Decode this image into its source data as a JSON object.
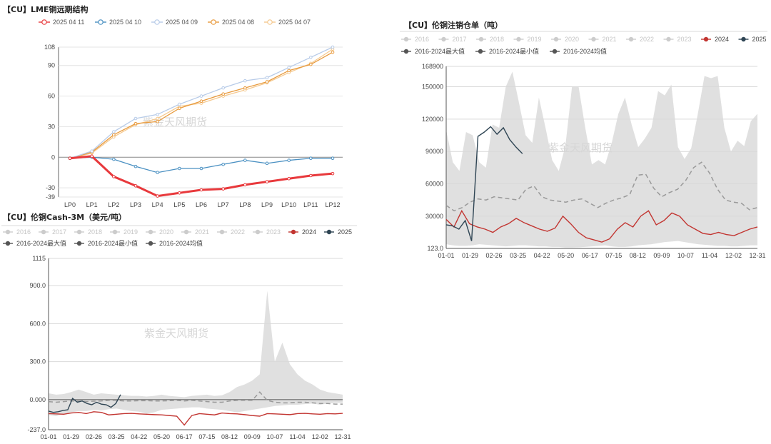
{
  "chart_data": [
    {
      "type": "line",
      "title": "【CU】LME铜远期结构",
      "watermark": "紫金天风期货",
      "categories": [
        "LP0",
        "LP1",
        "LP2",
        "LP3",
        "LP4",
        "LP5",
        "LP6",
        "LP7",
        "LP8",
        "LP9",
        "LP10",
        "LP11",
        "LP12"
      ],
      "y_ticks": [
        "108",
        "90",
        "60",
        "30",
        "0",
        "-30",
        "-39"
      ],
      "ylim": [
        -39,
        108
      ],
      "legend_position": "top-left",
      "series": [
        {
          "name": "2025 04 11",
          "color": "#e8393c",
          "values": [
            -1,
            1,
            -19,
            -28,
            -38,
            -35,
            -32,
            -31,
            -27,
            -24,
            -21,
            -18,
            -16
          ]
        },
        {
          "name": "2025 04 10",
          "color": "#4a90c2",
          "values": [
            -1,
            0,
            -2,
            -9,
            -15,
            -11,
            -11,
            -7,
            -3,
            -6,
            -3,
            -1,
            -1
          ]
        },
        {
          "name": "2025 04 09",
          "color": "#b7cbe8",
          "values": [
            -1,
            6,
            25,
            38,
            42,
            52,
            60,
            68,
            75,
            78,
            88,
            98,
            108
          ]
        },
        {
          "name": "2025 04 08",
          "color": "#e89a3d",
          "values": [
            -1,
            5,
            22,
            33,
            35,
            48,
            55,
            62,
            68,
            74,
            85,
            91,
            103
          ]
        },
        {
          "name": "2025 04 07",
          "color": "#f5c98f",
          "values": [
            -1,
            4,
            20,
            32,
            38,
            50,
            53,
            60,
            66,
            73,
            83,
            92,
            106
          ]
        }
      ]
    },
    {
      "type": "area",
      "title": "【CU】伦铜注销仓单（吨）",
      "watermark": "紫金天风期货",
      "x_ticks": [
        "01-01",
        "01-29",
        "02-26",
        "03-25",
        "04-22",
        "05-20",
        "06-17",
        "07-15",
        "08-12",
        "09-09",
        "10-07",
        "11-04",
        "12-02",
        "12-31"
      ],
      "y_ticks": [
        "168900",
        "150000",
        "120000",
        "90000",
        "60000",
        "30000",
        "123.0"
      ],
      "ylim": [
        123,
        168900
      ],
      "legend_position": "top",
      "legend": [
        {
          "name": "2016",
          "color": "#cccccc"
        },
        {
          "name": "2017",
          "color": "#cccccc"
        },
        {
          "name": "2018",
          "color": "#cccccc"
        },
        {
          "name": "2019",
          "color": "#cccccc"
        },
        {
          "name": "2020",
          "color": "#cccccc"
        },
        {
          "name": "2021",
          "color": "#cccccc"
        },
        {
          "name": "2022",
          "color": "#cccccc"
        },
        {
          "name": "2023",
          "color": "#cccccc"
        },
        {
          "name": "2024",
          "color": "#c23531"
        },
        {
          "name": "2025",
          "color": "#2f4554"
        },
        {
          "name": "2016-2024最大值",
          "color": "#555555"
        },
        {
          "name": "2016-2024最小值",
          "color": "#555555"
        },
        {
          "name": "2016-2024均值",
          "color": "#555555"
        }
      ],
      "band_max": [
        110000,
        80000,
        72000,
        108000,
        105000,
        80000,
        75000,
        115000,
        112000,
        150000,
        164000,
        135000,
        105000,
        98000,
        140000,
        112000,
        82000,
        72000,
        95000,
        150000,
        150000,
        112000,
        78000,
        82000,
        78000,
        98000,
        125000,
        140000,
        115000,
        94000,
        102000,
        112000,
        146000,
        142000,
        152000,
        94000,
        83000,
        93000,
        125000,
        160000,
        158000,
        160000,
        112000,
        90000,
        100000,
        95000,
        118000,
        125000
      ],
      "band_min": [
        4000,
        3000,
        2500,
        2500,
        3000,
        4000,
        3500,
        3000,
        2500,
        2000,
        2500,
        3000,
        3000,
        2500,
        2000,
        2000,
        1500,
        1500,
        1000,
        1000,
        1200,
        1500,
        2000,
        2500,
        3000,
        2000,
        1500,
        1500,
        2000,
        3000,
        3500,
        4000,
        5000,
        6000,
        6500,
        7000,
        6000,
        5000,
        4000,
        3500,
        3000,
        2500,
        2500,
        2000,
        2000,
        2500,
        3000,
        3000
      ],
      "average": [
        40000,
        35000,
        38000,
        43000,
        46000,
        45000,
        48000,
        47000,
        46000,
        45000,
        55000,
        58000,
        48000,
        45000,
        44000,
        43000,
        45000,
        46000,
        42000,
        38000,
        42000,
        45000,
        47000,
        50000,
        68000,
        69000,
        56000,
        48000,
        52000,
        55000,
        63000,
        75000,
        80000,
        70000,
        55000,
        45000,
        43000,
        42000,
        36000,
        38000
      ],
      "series": [
        {
          "name": "2024",
          "color": "#c23531",
          "values": [
            27000,
            20000,
            35000,
            23000,
            20000,
            18000,
            15000,
            20000,
            23000,
            28000,
            24000,
            21000,
            18000,
            16000,
            19000,
            30000,
            23000,
            15000,
            10000,
            8000,
            6000,
            9000,
            18000,
            24000,
            20000,
            30000,
            35000,
            22000,
            26000,
            33000,
            30000,
            22000,
            18000,
            14000,
            13000,
            15000,
            13000,
            12000,
            15000,
            18000,
            20000
          ]
        },
        {
          "name": "2025",
          "color": "#2f4554",
          "values": [
            22000,
            21000,
            18000,
            26000,
            7000,
            104000,
            108000,
            113000,
            106000,
            112000,
            101000,
            94000,
            88000
          ]
        }
      ]
    },
    {
      "type": "area",
      "title": "【CU】伦铜Cash-3M（美元/吨）",
      "watermark": "紫金天风期货",
      "x_ticks": [
        "01-01",
        "01-29",
        "02-26",
        "03-25",
        "04-22",
        "05-20",
        "06-17",
        "07-15",
        "08-12",
        "09-09",
        "10-07",
        "11-04",
        "12-02",
        "12-31"
      ],
      "y_ticks": [
        "1115",
        "900.0",
        "600.0",
        "300.0",
        "0.000",
        "-237.0"
      ],
      "ylim": [
        -237,
        1115
      ],
      "legend_position": "top",
      "legend": [
        {
          "name": "2016",
          "color": "#cccccc"
        },
        {
          "name": "2017",
          "color": "#cccccc"
        },
        {
          "name": "2018",
          "color": "#cccccc"
        },
        {
          "name": "2019",
          "color": "#cccccc"
        },
        {
          "name": "2020",
          "color": "#cccccc"
        },
        {
          "name": "2021",
          "color": "#cccccc"
        },
        {
          "name": "2022",
          "color": "#cccccc"
        },
        {
          "name": "2023",
          "color": "#cccccc"
        },
        {
          "name": "2024",
          "color": "#c23531"
        },
        {
          "name": "2025",
          "color": "#2f4554"
        },
        {
          "name": "2016-2024最大值",
          "color": "#555555"
        },
        {
          "name": "2016-2024最小值",
          "color": "#555555"
        },
        {
          "name": "2016-2024均值",
          "color": "#555555"
        }
      ],
      "band_max": [
        50,
        40,
        45,
        60,
        80,
        60,
        40,
        50,
        45,
        40,
        35,
        30,
        30,
        25,
        30,
        40,
        30,
        25,
        20,
        30,
        35,
        40,
        30,
        35,
        60,
        100,
        120,
        150,
        200,
        860,
        300,
        450,
        280,
        200,
        150,
        120,
        80,
        60,
        50,
        40
      ],
      "band_min": [
        -120,
        -130,
        -110,
        -100,
        -90,
        -90,
        -80,
        -85,
        -75,
        -70,
        -80,
        -90,
        -95,
        -110,
        -100,
        -80,
        -75,
        -70,
        -65,
        -60,
        -60,
        -70,
        -75,
        -80,
        -90,
        -100,
        -90,
        -80,
        -70,
        -60,
        -50,
        -45,
        -40,
        -40,
        -35,
        -30,
        -40,
        -30,
        -25,
        -25
      ],
      "average": [
        -15,
        -20,
        -15,
        -10,
        -10,
        -15,
        -12,
        -10,
        -5,
        -5,
        -10,
        -10,
        -8,
        -8,
        -10,
        -10,
        -8,
        -5,
        -10,
        -5,
        -10,
        -15,
        -20,
        -20,
        -10,
        -5,
        -5,
        -5,
        60,
        -5,
        -20,
        -25,
        -25,
        -20,
        -20,
        -25,
        -30,
        -30,
        -35,
        -35
      ],
      "series": [
        {
          "name": "2024",
          "color": "#c23531",
          "values": [
            -110,
            -112,
            -115,
            -105,
            -100,
            -110,
            -95,
            -100,
            -120,
            -115,
            -110,
            -108,
            -112,
            -115,
            -118,
            -120,
            -125,
            -130,
            -200,
            -125,
            -110,
            -115,
            -120,
            -105,
            -110,
            -112,
            -118,
            -125,
            -130,
            -110,
            -112,
            -115,
            -118,
            -110,
            -108,
            -112,
            -115,
            -110,
            -112,
            -108
          ]
        },
        {
          "name": "2025",
          "color": "#2f4554",
          "values": [
            -90,
            -100,
            -95,
            -85,
            -80,
            10,
            -20,
            -10,
            -30,
            -40,
            -20,
            -35,
            -40,
            -60,
            -30,
            40
          ]
        }
      ]
    }
  ]
}
